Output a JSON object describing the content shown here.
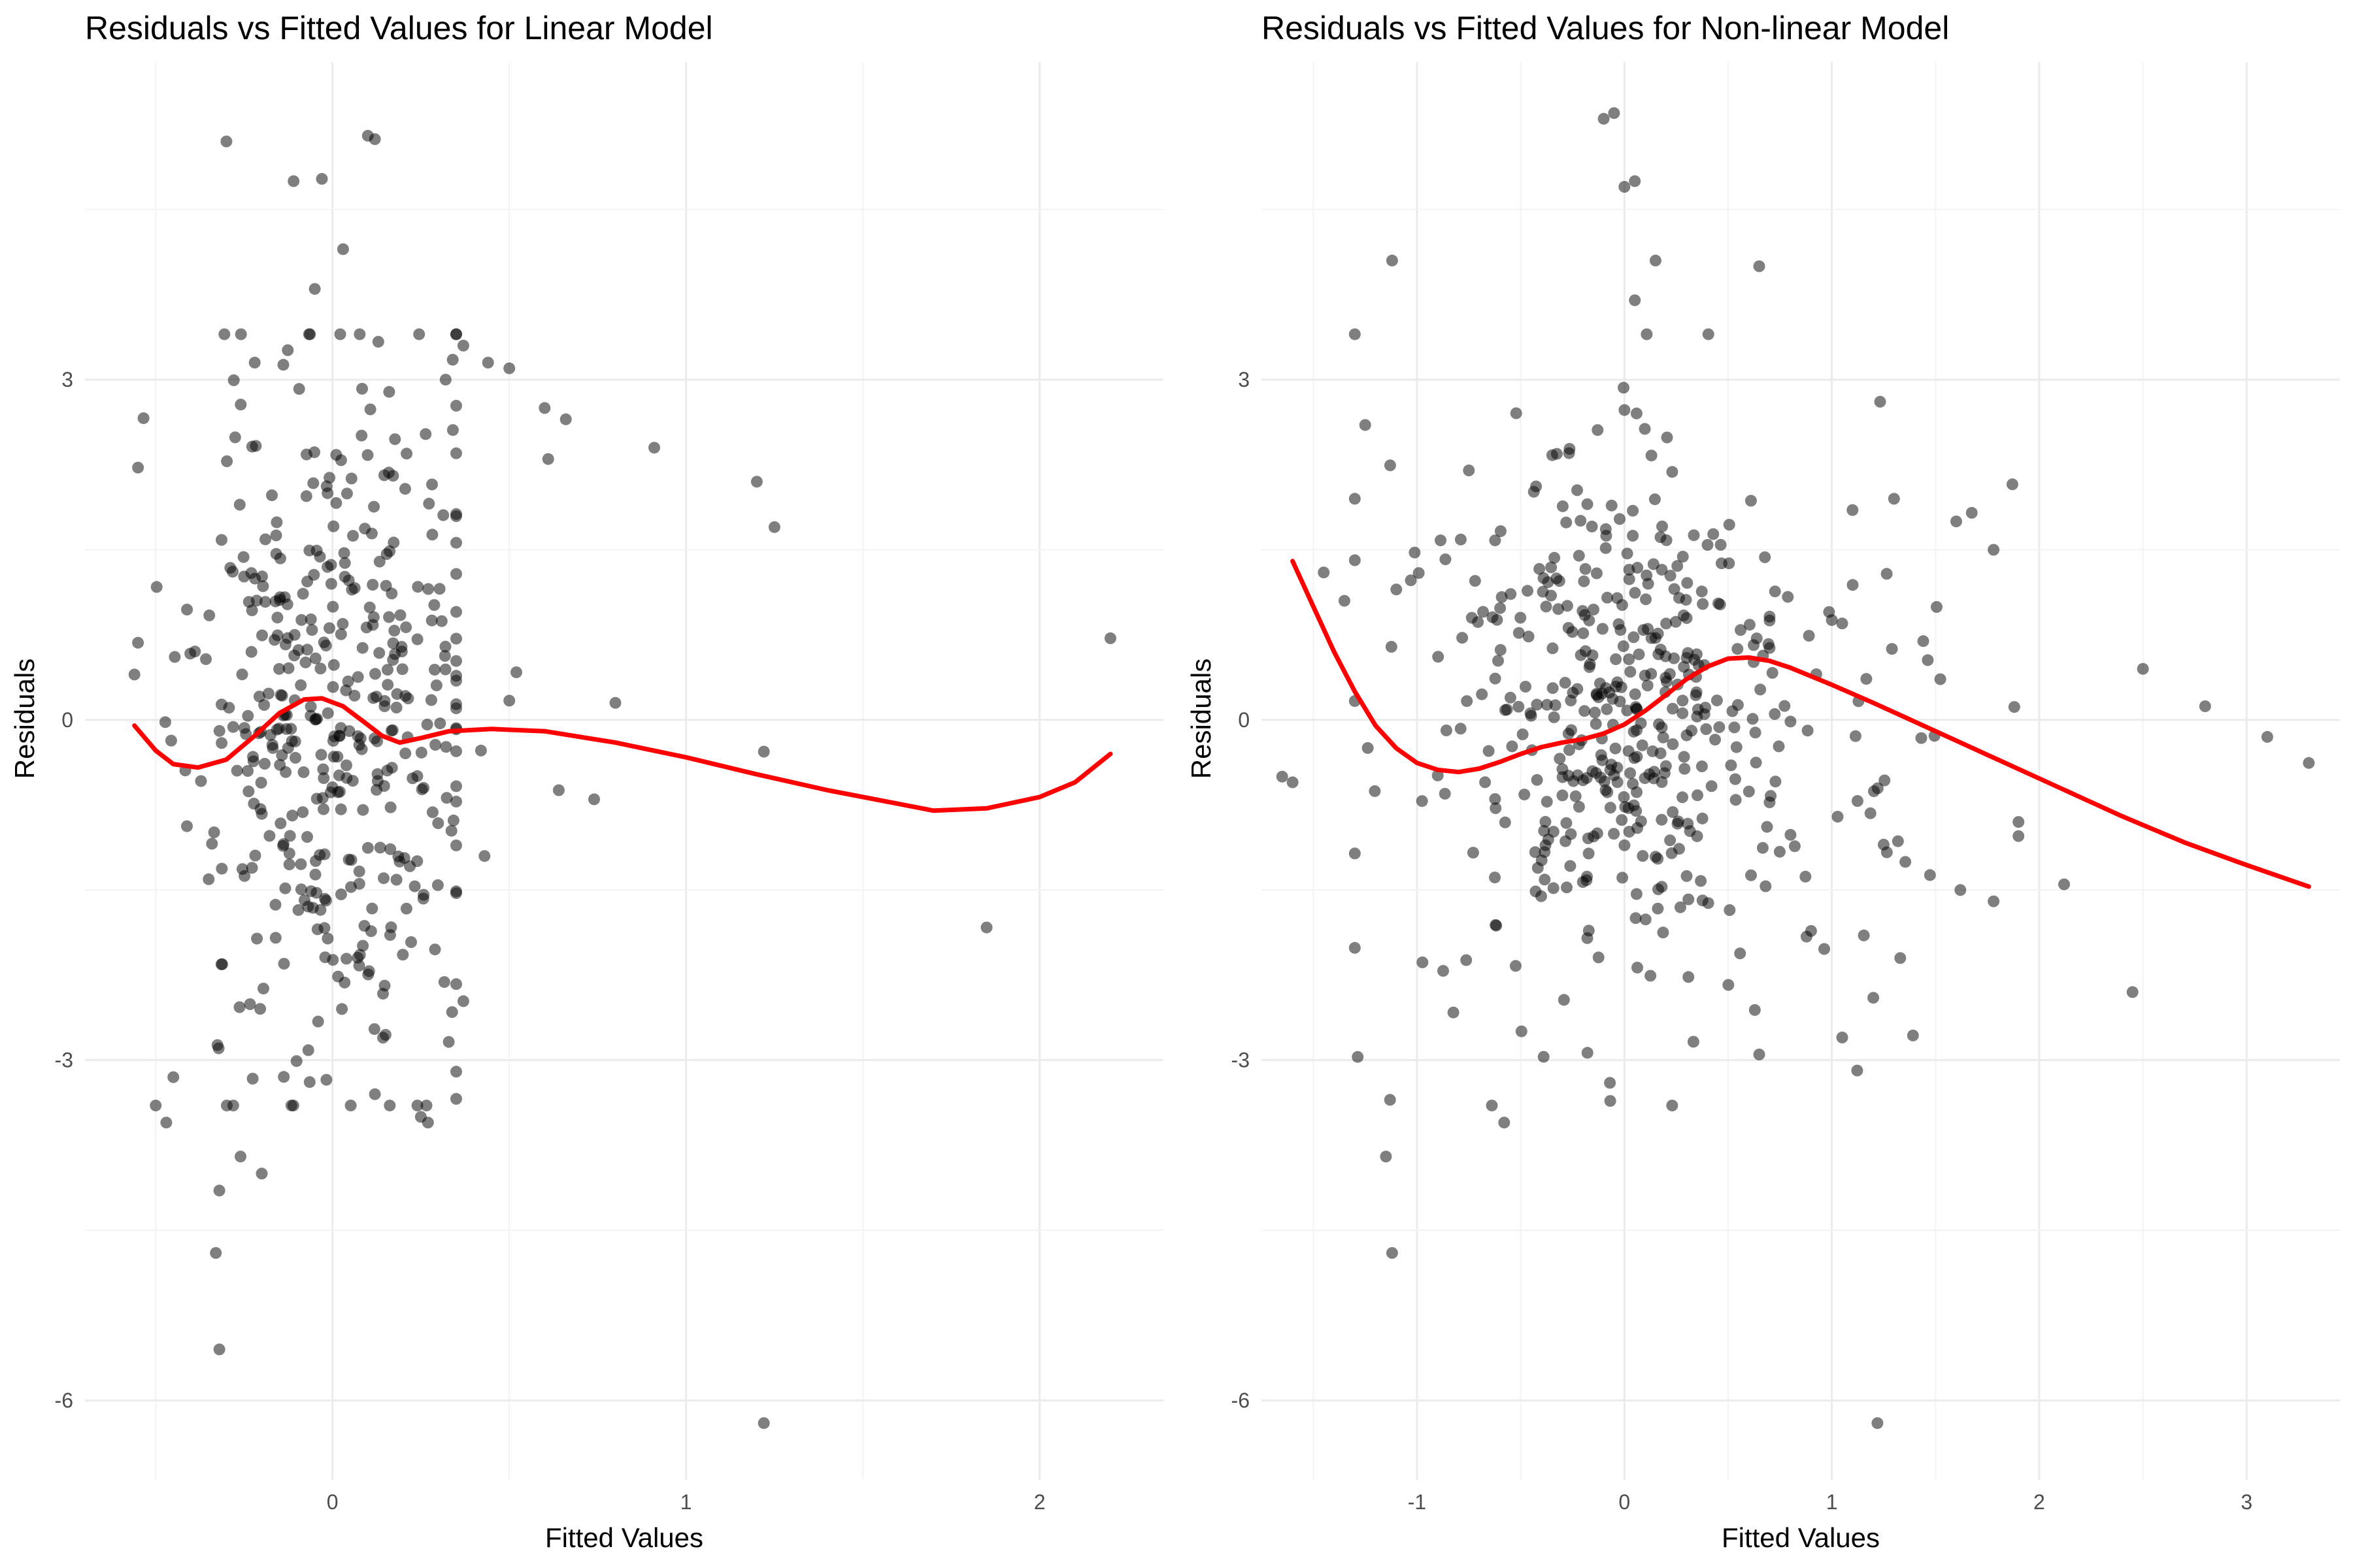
{
  "chart_data": [
    {
      "type": "scatter",
      "title": "Residuals vs Fitted Values for Linear Model",
      "xlabel": "Fitted Values",
      "ylabel": "Residuals",
      "xlim": [
        -0.7,
        2.35
      ],
      "ylim": [
        -6.7,
        5.8
      ],
      "xticks": [
        0,
        1,
        2
      ],
      "xtick_labels": [
        "0",
        "1",
        "2"
      ],
      "yticks": [
        -6,
        -3,
        0,
        3
      ],
      "ytick_labels": [
        "-6",
        "-3",
        "0",
        "3"
      ],
      "grid": true,
      "legend": "none",
      "point_color": "#000000",
      "smooth_color": "#ff0000",
      "seed": 11,
      "bulk": [
        {
          "n": 430,
          "x_center": 0.0,
          "x_spread": 0.2,
          "x_min": -0.55,
          "x_max": 0.35,
          "y_sd": 1.55
        }
      ],
      "points": [
        {
          "x": -0.3,
          "y": 5.1
        },
        {
          "x": 0.1,
          "y": 5.15
        },
        {
          "x": 0.12,
          "y": 5.12
        },
        {
          "x": -0.11,
          "y": 4.75
        },
        {
          "x": -0.03,
          "y": 4.77
        },
        {
          "x": 0.03,
          "y": 4.15
        },
        {
          "x": -0.05,
          "y": 3.8
        },
        {
          "x": -0.22,
          "y": 3.15
        },
        {
          "x": 0.5,
          "y": 3.1
        },
        {
          "x": 0.37,
          "y": 3.3
        },
        {
          "x": 0.44,
          "y": 3.15
        },
        {
          "x": 0.32,
          "y": 3.0
        },
        {
          "x": 0.6,
          "y": 2.75
        },
        {
          "x": 0.66,
          "y": 2.65
        },
        {
          "x": 0.61,
          "y": 2.3
        },
        {
          "x": 0.91,
          "y": 2.4
        },
        {
          "x": 1.2,
          "y": 2.1
        },
        {
          "x": 1.25,
          "y": 1.7
        },
        {
          "x": 0.52,
          "y": 0.42
        },
        {
          "x": 0.5,
          "y": 0.17
        },
        {
          "x": 0.8,
          "y": 0.15
        },
        {
          "x": 0.42,
          "y": -0.27
        },
        {
          "x": 0.43,
          "y": -1.2
        },
        {
          "x": 0.64,
          "y": -0.62
        },
        {
          "x": 0.74,
          "y": -0.7
        },
        {
          "x": 1.22,
          "y": -0.28
        },
        {
          "x": 2.2,
          "y": 0.72
        },
        {
          "x": 1.85,
          "y": -1.83
        },
        {
          "x": 1.22,
          "y": -6.2
        },
        {
          "x": -0.32,
          "y": -5.55
        },
        {
          "x": -0.33,
          "y": -4.7
        },
        {
          "x": -0.32,
          "y": -4.15
        },
        {
          "x": -0.26,
          "y": -3.85
        },
        {
          "x": -0.2,
          "y": -4.0
        },
        {
          "x": -0.47,
          "y": -3.55
        },
        {
          "x": -0.5,
          "y": -3.4
        },
        {
          "x": -0.45,
          "y": -3.15
        },
        {
          "x": 0.12,
          "y": -3.3
        },
        {
          "x": 0.25,
          "y": -3.5
        },
        {
          "x": 0.27,
          "y": -3.55
        },
        {
          "x": 0.37,
          "y": -2.48
        },
        {
          "x": -0.56,
          "y": 0.4
        },
        {
          "x": -0.55,
          "y": 0.68
        }
      ],
      "smooth": [
        [
          -0.56,
          -0.05
        ],
        [
          -0.5,
          -0.27
        ],
        [
          -0.45,
          -0.39
        ],
        [
          -0.38,
          -0.42
        ],
        [
          -0.3,
          -0.35
        ],
        [
          -0.22,
          -0.14
        ],
        [
          -0.15,
          0.06
        ],
        [
          -0.08,
          0.18
        ],
        [
          -0.03,
          0.19
        ],
        [
          0.03,
          0.12
        ],
        [
          0.09,
          -0.02
        ],
        [
          0.14,
          -0.14
        ],
        [
          0.19,
          -0.2
        ],
        [
          0.25,
          -0.16
        ],
        [
          0.33,
          -0.1
        ],
        [
          0.45,
          -0.08
        ],
        [
          0.6,
          -0.1
        ],
        [
          0.8,
          -0.2
        ],
        [
          1.0,
          -0.33
        ],
        [
          1.2,
          -0.48
        ],
        [
          1.4,
          -0.62
        ],
        [
          1.6,
          -0.74
        ],
        [
          1.7,
          -0.8
        ],
        [
          1.85,
          -0.78
        ],
        [
          2.0,
          -0.68
        ],
        [
          2.1,
          -0.55
        ],
        [
          2.2,
          -0.3
        ]
      ]
    },
    {
      "type": "scatter",
      "title": "Residuals vs Fitted Values for Non-linear Model",
      "xlabel": "Fitted Values",
      "ylabel": "Residuals",
      "xlim": [
        -1.75,
        3.45
      ],
      "ylim": [
        -6.7,
        5.8
      ],
      "xticks": [
        -1,
        0,
        1,
        2,
        3
      ],
      "xtick_labels": [
        "-1",
        "0",
        "1",
        "2",
        "3"
      ],
      "yticks": [
        -6,
        -3,
        0,
        3
      ],
      "ytick_labels": [
        "-6",
        "-3",
        "0",
        "3"
      ],
      "grid": true,
      "legend": "none",
      "point_color": "#000000",
      "smooth_color": "#ff0000",
      "seed": 23,
      "bulk": [
        {
          "n": 290,
          "x_center": 0.0,
          "x_spread": 0.32,
          "x_min": -0.9,
          "x_max": 0.9,
          "y_sd": 1.15
        },
        {
          "n": 120,
          "x_center": -0.4,
          "x_spread": 0.45,
          "x_min": -1.3,
          "x_max": 0.7,
          "y_sd": 1.3
        },
        {
          "n": 60,
          "x_center": 0.9,
          "x_spread": 0.4,
          "x_min": 0.3,
          "x_max": 1.9,
          "y_sd": 1.25
        }
      ],
      "points": [
        {
          "x": -0.05,
          "y": 5.35
        },
        {
          "x": -0.1,
          "y": 5.3
        },
        {
          "x": 0.05,
          "y": 4.75
        },
        {
          "x": 0.0,
          "y": 4.7
        },
        {
          "x": -1.12,
          "y": 4.05
        },
        {
          "x": 0.15,
          "y": 4.05
        },
        {
          "x": 0.65,
          "y": 4.0
        },
        {
          "x": 0.05,
          "y": 3.7
        },
        {
          "x": -1.3,
          "y": 3.4
        },
        {
          "x": -1.25,
          "y": 2.6
        },
        {
          "x": 1.0,
          "y": 0.88
        },
        {
          "x": 1.05,
          "y": 0.85
        },
        {
          "x": 1.1,
          "y": 1.85
        },
        {
          "x": 1.3,
          "y": 1.95
        },
        {
          "x": 1.6,
          "y": 1.75
        },
        {
          "x": 1.78,
          "y": 1.5
        },
        {
          "x": 2.5,
          "y": 0.45
        },
        {
          "x": 2.8,
          "y": 0.12
        },
        {
          "x": 3.1,
          "y": -0.15
        },
        {
          "x": 3.3,
          "y": -0.38
        },
        {
          "x": 1.62,
          "y": -1.5
        },
        {
          "x": 1.78,
          "y": -1.6
        },
        {
          "x": 1.9,
          "y": -0.9
        },
        {
          "x": 2.12,
          "y": -1.45
        },
        {
          "x": 2.45,
          "y": -2.4
        },
        {
          "x": 1.33,
          "y": -2.1
        },
        {
          "x": 1.2,
          "y": -2.45
        },
        {
          "x": 1.25,
          "y": -1.1
        },
        {
          "x": 1.05,
          "y": -2.8
        },
        {
          "x": 0.65,
          "y": -2.95
        },
        {
          "x": 0.23,
          "y": -3.4
        },
        {
          "x": -0.58,
          "y": -3.55
        },
        {
          "x": -0.07,
          "y": -3.2
        },
        {
          "x": -1.13,
          "y": -3.35
        },
        {
          "x": -1.15,
          "y": -3.85
        },
        {
          "x": -1.12,
          "y": -4.7
        },
        {
          "x": 1.22,
          "y": -6.2
        },
        {
          "x": -1.65,
          "y": -0.5
        },
        {
          "x": -1.6,
          "y": -0.55
        },
        {
          "x": -1.45,
          "y": 1.3
        },
        {
          "x": -1.35,
          "y": 1.05
        },
        {
          "x": -1.3,
          "y": 1.95
        },
        {
          "x": -1.1,
          "y": 1.15
        },
        {
          "x": -0.75,
          "y": 2.2
        }
      ],
      "smooth": [
        [
          -1.6,
          1.4
        ],
        [
          -1.5,
          1.0
        ],
        [
          -1.4,
          0.6
        ],
        [
          -1.3,
          0.25
        ],
        [
          -1.2,
          -0.05
        ],
        [
          -1.1,
          -0.25
        ],
        [
          -1.0,
          -0.38
        ],
        [
          -0.9,
          -0.44
        ],
        [
          -0.8,
          -0.46
        ],
        [
          -0.7,
          -0.43
        ],
        [
          -0.6,
          -0.37
        ],
        [
          -0.5,
          -0.3
        ],
        [
          -0.4,
          -0.24
        ],
        [
          -0.3,
          -0.2
        ],
        [
          -0.2,
          -0.17
        ],
        [
          -0.1,
          -0.12
        ],
        [
          0.0,
          -0.04
        ],
        [
          0.1,
          0.08
        ],
        [
          0.2,
          0.22
        ],
        [
          0.3,
          0.36
        ],
        [
          0.4,
          0.47
        ],
        [
          0.5,
          0.54
        ],
        [
          0.6,
          0.55
        ],
        [
          0.7,
          0.52
        ],
        [
          0.8,
          0.46
        ],
        [
          1.0,
          0.31
        ],
        [
          1.2,
          0.15
        ],
        [
          1.5,
          -0.1
        ],
        [
          1.8,
          -0.35
        ],
        [
          2.1,
          -0.6
        ],
        [
          2.4,
          -0.85
        ],
        [
          2.7,
          -1.08
        ],
        [
          3.0,
          -1.28
        ],
        [
          3.3,
          -1.47
        ]
      ]
    }
  ]
}
